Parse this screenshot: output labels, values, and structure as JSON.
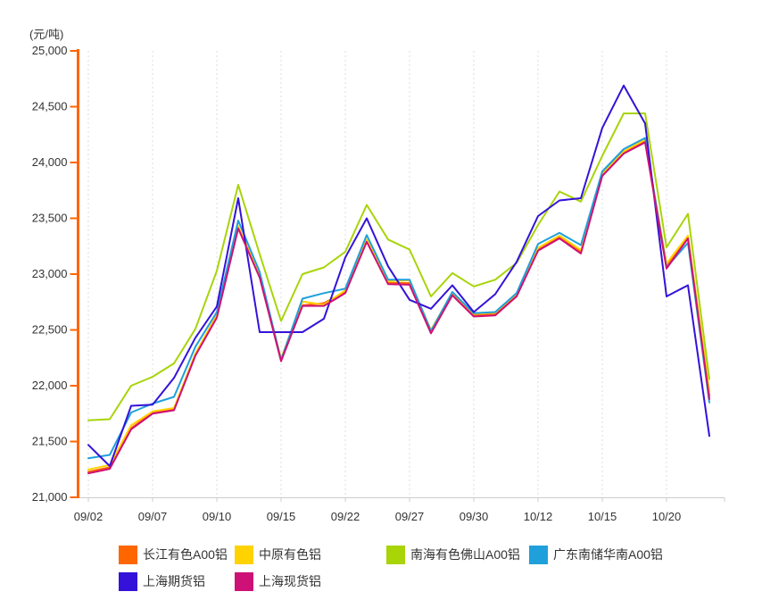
{
  "unit_label": "(元/吨)",
  "colors": {
    "y_axis": "#FF6600",
    "x_axis": "#CCCCCC",
    "gridline": "#DDDDDD",
    "tick_text": "#333333"
  },
  "chart_data": {
    "type": "line",
    "title": "",
    "ylabel_unit": "(元/吨)",
    "ylim": [
      21000,
      25000
    ],
    "y_ticks": [
      21000,
      21500,
      22000,
      22500,
      23000,
      23500,
      24000,
      24500,
      25000
    ],
    "y_tick_labels": [
      "21,000",
      "21,500",
      "22,000",
      "22,500",
      "23,000",
      "23,500",
      "24,000",
      "24,500",
      "25,000"
    ],
    "grid": "vertical-dashed",
    "legend_position": "bottom",
    "x": [
      "09/02",
      "09/03",
      "09/06",
      "09/07",
      "09/08",
      "09/09",
      "09/10",
      "09/13",
      "09/14",
      "09/15",
      "09/16",
      "09/17",
      "09/22",
      "09/23",
      "09/24",
      "09/27",
      "09/28",
      "09/29",
      "09/30",
      "10/08",
      "10/11",
      "10/12",
      "10/13",
      "10/14",
      "10/15",
      "10/18",
      "10/19",
      "10/20",
      "10/21",
      "10/22"
    ],
    "x_label_indices": [
      0,
      3,
      6,
      9,
      12,
      15,
      18,
      21,
      24,
      27
    ],
    "x_axis_labels": [
      "09/02",
      "09/07",
      "09/10",
      "09/15",
      "09/22",
      "09/27",
      "09/30",
      "10/12",
      "10/15",
      "10/20"
    ],
    "series": [
      {
        "name": "长江有色A00铝",
        "color": "#FF6600",
        "values": [
          21230,
          21270,
          21620,
          21760,
          21790,
          22280,
          22620,
          23420,
          22980,
          22230,
          22720,
          22740,
          22840,
          23300,
          22920,
          22920,
          22480,
          22820,
          22630,
          22640,
          22810,
          23220,
          23330,
          23200,
          23890,
          24090,
          24190,
          23070,
          23330,
          21910
        ]
      },
      {
        "name": "中原有色铝",
        "color": "#FFD200",
        "values": [
          21250,
          21290,
          21645,
          21770,
          21800,
          22290,
          22635,
          23430,
          22990,
          22245,
          22755,
          22725,
          22855,
          23310,
          22935,
          22945,
          22500,
          22835,
          22645,
          22655,
          22825,
          23235,
          23345,
          23215,
          23900,
          24100,
          24205,
          23095,
          23345,
          21950
        ]
      },
      {
        "name": "南海有色佛山A00铝",
        "color": "#A8D408",
        "values": [
          21690,
          21700,
          22000,
          22080,
          22200,
          22510,
          23030,
          23800,
          23180,
          22580,
          23000,
          23060,
          23200,
          23620,
          23310,
          23220,
          22800,
          23010,
          22890,
          22950,
          23100,
          23440,
          23740,
          23650,
          24060,
          24440,
          24440,
          23240,
          23540,
          22060
        ]
      },
      {
        "name": "广东南储华南A00铝",
        "color": "#1FA0DB",
        "values": [
          21350,
          21380,
          21760,
          21840,
          21900,
          22350,
          22660,
          23480,
          23020,
          22230,
          22780,
          22830,
          22870,
          23350,
          22950,
          22950,
          22490,
          22840,
          22650,
          22660,
          22830,
          23270,
          23370,
          23260,
          23920,
          24120,
          24220,
          23060,
          23280,
          21850
        ]
      },
      {
        "name": "上海期货铝",
        "color": "#3412D9",
        "values": [
          21470,
          21280,
          21820,
          21830,
          22070,
          22430,
          22710,
          23680,
          22480,
          22480,
          22480,
          22600,
          23150,
          23500,
          23070,
          22770,
          22690,
          22900,
          22660,
          22820,
          23110,
          23520,
          23660,
          23680,
          24310,
          24690,
          24350,
          22800,
          22900,
          21550
        ]
      },
      {
        "name": "上海现货铝",
        "color": "#CE1176",
        "values": [
          21215,
          21255,
          21610,
          21750,
          21780,
          22270,
          22610,
          23410,
          22970,
          22220,
          22715,
          22715,
          22830,
          23290,
          22910,
          22905,
          22470,
          22810,
          22620,
          22630,
          22800,
          23210,
          23320,
          23185,
          23880,
          24080,
          24180,
          23050,
          23320,
          21880
        ]
      }
    ]
  }
}
